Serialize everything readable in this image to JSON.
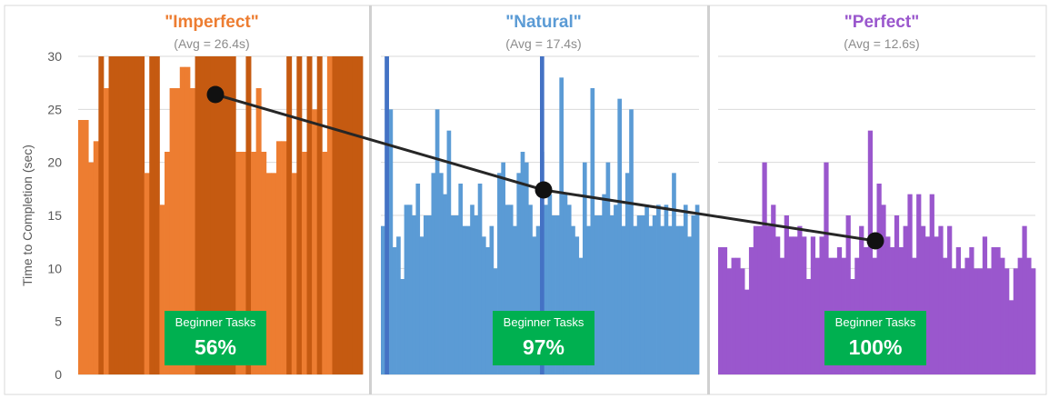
{
  "chart_data": {
    "type": "bar",
    "ylabel": "Time to Completion (sec)",
    "ylim": [
      0,
      30
    ],
    "yticks": [
      0,
      5,
      10,
      15,
      20,
      25,
      30
    ],
    "grid": true,
    "panels": [
      {
        "id": "imperfect",
        "title": "\"Imperfect\"",
        "subtitle": "(Avg = 26.4s)",
        "avg": 26.4,
        "badge_label": "Beginner Tasks",
        "badge_value": "56%",
        "color": "#ED7D31",
        "highlight_color": "#C55A11",
        "values": [
          24,
          24,
          20,
          22,
          30,
          27,
          30,
          30,
          30,
          30,
          30,
          30,
          30,
          19,
          30,
          30,
          16,
          21,
          27,
          27,
          29,
          29,
          27,
          30,
          30,
          30,
          30,
          30,
          30,
          30,
          30,
          21,
          21,
          30,
          21,
          27,
          21,
          19,
          19,
          22,
          22,
          30,
          19,
          30,
          21,
          30,
          25,
          30,
          21,
          30,
          30,
          30,
          30,
          30,
          30,
          30
        ],
        "highlighted": [
          4,
          6,
          7,
          8,
          9,
          10,
          11,
          12,
          14,
          15,
          23,
          24,
          25,
          26,
          27,
          28,
          29,
          30,
          33,
          41,
          43,
          45,
          47,
          50,
          51,
          52,
          53,
          54,
          55
        ]
      },
      {
        "id": "natural",
        "title": "\"Natural\"",
        "subtitle": "(Avg = 17.4s)",
        "avg": 17.4,
        "badge_label": "Beginner Tasks",
        "badge_value": "97%",
        "color": "#5B9BD5",
        "highlight_color": "#4472C4",
        "values": [
          14,
          30,
          25,
          12,
          13,
          9,
          16,
          16,
          15,
          18,
          13,
          15,
          15,
          19,
          25,
          19,
          17,
          23,
          15,
          15,
          18,
          14,
          14,
          16,
          15,
          18,
          13,
          12,
          14,
          10,
          19,
          20,
          16,
          16,
          14,
          19,
          21,
          20,
          16,
          13,
          14,
          21,
          16,
          17,
          15,
          15,
          28,
          17,
          16,
          14,
          13,
          11,
          20,
          14,
          27,
          15,
          15,
          17,
          20,
          15,
          16,
          26,
          14,
          19,
          25,
          14,
          15,
          15,
          16,
          14,
          15,
          16,
          14,
          16,
          14,
          19,
          14,
          14,
          16,
          13,
          15,
          16
        ]
      },
      {
        "id": "perfect",
        "title": "\"Perfect\"",
        "subtitle": "(Avg = 12.6s)",
        "avg": 12.6,
        "badge_label": "Beginner Tasks",
        "badge_value": "100%",
        "color": "#9A57CD",
        "highlight_color": "#7030A0",
        "values": [
          12,
          12,
          10,
          11,
          11,
          10,
          8,
          12,
          14,
          14,
          20,
          14,
          16,
          13,
          11,
          15,
          13,
          13,
          14,
          13,
          9,
          13,
          11,
          13,
          20,
          11,
          11,
          12,
          11,
          15,
          9,
          11,
          14,
          12,
          23,
          11,
          18,
          16,
          13,
          12,
          15,
          12,
          14,
          17,
          11,
          17,
          14,
          13,
          17,
          13,
          14,
          11,
          14,
          10,
          12,
          10,
          11,
          12,
          10,
          10,
          13,
          10,
          12,
          12,
          11,
          10,
          7,
          10,
          11,
          14,
          11,
          10
        ]
      }
    ],
    "trend_line": {
      "points": [
        26.4,
        17.4,
        12.6
      ],
      "color": "#262626"
    }
  }
}
